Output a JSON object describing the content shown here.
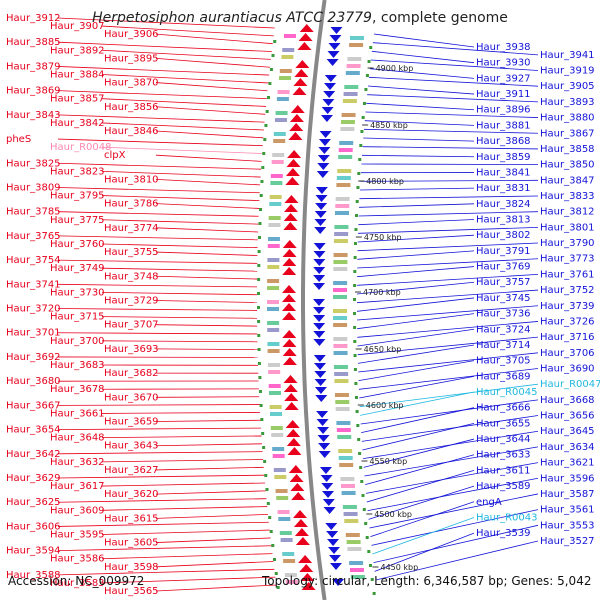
{
  "title": {
    "organism": "Herpetosiphon aurantiacus ATCC 23779",
    "suffix": ", complete genome"
  },
  "footer": {
    "accession_label": "Accession:",
    "accession_value": "NC_009972",
    "topology_label": "Topology:",
    "topology_value": "circular",
    "length_label": "Length:",
    "length_value": "6,346,587 bp",
    "genes_label": "Genes:",
    "genes_value": "5,042"
  },
  "colors": {
    "forward": "#e8001c",
    "reverse": "#1414d8",
    "rna": "#ff88b0",
    "rna_reverse": "#20b8e0",
    "backbone": "#888888",
    "tick": "#3a9a3a"
  },
  "scale_labels": [
    "4900 kbp",
    "4850 kbp",
    "4800 kbp",
    "4750 kbp",
    "4700 kbp",
    "4650 kbp",
    "4600 kbp",
    "4550 kbp",
    "4500 kbp",
    "4450 kbp"
  ],
  "left_labels": [
    {
      "text": "Haur_3912",
      "kind": "gene"
    },
    {
      "text": "Haur_3907",
      "kind": "gene"
    },
    {
      "text": "Haur_3906",
      "kind": "gene"
    },
    {
      "text": "Haur_3885",
      "kind": "gene"
    },
    {
      "text": "Haur_3892",
      "kind": "gene"
    },
    {
      "text": "Haur_3895",
      "kind": "gene"
    },
    {
      "text": "Haur_3879",
      "kind": "gene"
    },
    {
      "text": "Haur_3884",
      "kind": "gene"
    },
    {
      "text": "Haur_3870",
      "kind": "gene"
    },
    {
      "text": "Haur_3869",
      "kind": "gene"
    },
    {
      "text": "Haur_3857",
      "kind": "gene"
    },
    {
      "text": "Haur_3856",
      "kind": "gene"
    },
    {
      "text": "Haur_3843",
      "kind": "gene"
    },
    {
      "text": "Haur_3842",
      "kind": "gene"
    },
    {
      "text": "Haur_3846",
      "kind": "gene"
    },
    {
      "text": "pheS",
      "kind": "gene"
    },
    {
      "text": "Haur_R0048",
      "kind": "rna"
    },
    {
      "text": "clpX",
      "kind": "gene"
    },
    {
      "text": "Haur_3825",
      "kind": "gene"
    },
    {
      "text": "Haur_3823",
      "kind": "gene"
    },
    {
      "text": "Haur_3810",
      "kind": "gene"
    },
    {
      "text": "Haur_3809",
      "kind": "gene"
    },
    {
      "text": "Haur_3795",
      "kind": "gene"
    },
    {
      "text": "Haur_3786",
      "kind": "gene"
    },
    {
      "text": "Haur_3785",
      "kind": "gene"
    },
    {
      "text": "Haur_3775",
      "kind": "gene"
    },
    {
      "text": "Haur_3774",
      "kind": "gene"
    },
    {
      "text": "Haur_3765",
      "kind": "gene"
    },
    {
      "text": "Haur_3760",
      "kind": "gene"
    },
    {
      "text": "Haur_3755",
      "kind": "gene"
    },
    {
      "text": "Haur_3754",
      "kind": "gene"
    },
    {
      "text": "Haur_3749",
      "kind": "gene"
    },
    {
      "text": "Haur_3748",
      "kind": "gene"
    },
    {
      "text": "Haur_3741",
      "kind": "gene"
    },
    {
      "text": "Haur_3730",
      "kind": "gene"
    },
    {
      "text": "Haur_3729",
      "kind": "gene"
    },
    {
      "text": "Haur_3720",
      "kind": "gene"
    },
    {
      "text": "Haur_3715",
      "kind": "gene"
    },
    {
      "text": "Haur_3707",
      "kind": "gene"
    },
    {
      "text": "Haur_3701",
      "kind": "gene"
    },
    {
      "text": "Haur_3700",
      "kind": "gene"
    },
    {
      "text": "Haur_3693",
      "kind": "gene"
    },
    {
      "text": "Haur_3692",
      "kind": "gene"
    },
    {
      "text": "Haur_3683",
      "kind": "gene"
    },
    {
      "text": "Haur_3682",
      "kind": "gene"
    },
    {
      "text": "Haur_3680",
      "kind": "gene"
    },
    {
      "text": "Haur_3678",
      "kind": "gene"
    },
    {
      "text": "Haur_3670",
      "kind": "gene"
    },
    {
      "text": "Haur_3667",
      "kind": "gene"
    },
    {
      "text": "Haur_3661",
      "kind": "gene"
    },
    {
      "text": "Haur_3659",
      "kind": "gene"
    },
    {
      "text": "Haur_3654",
      "kind": "gene"
    },
    {
      "text": "Haur_3648",
      "kind": "gene"
    },
    {
      "text": "Haur_3643",
      "kind": "gene"
    },
    {
      "text": "Haur_3642",
      "kind": "gene"
    },
    {
      "text": "Haur_3632",
      "kind": "gene"
    },
    {
      "text": "Haur_3627",
      "kind": "gene"
    },
    {
      "text": "Haur_3629",
      "kind": "gene"
    },
    {
      "text": "Haur_3617",
      "kind": "gene"
    },
    {
      "text": "Haur_3620",
      "kind": "gene"
    },
    {
      "text": "Haur_3625",
      "kind": "gene"
    },
    {
      "text": "Haur_3609",
      "kind": "gene"
    },
    {
      "text": "Haur_3615",
      "kind": "gene"
    },
    {
      "text": "Haur_3606",
      "kind": "gene"
    },
    {
      "text": "Haur_3595",
      "kind": "gene"
    },
    {
      "text": "Haur_3605",
      "kind": "gene"
    },
    {
      "text": "Haur_3594",
      "kind": "gene"
    },
    {
      "text": "Haur_3586",
      "kind": "gene"
    },
    {
      "text": "Haur_3598",
      "kind": "gene"
    },
    {
      "text": "Haur_3588",
      "kind": "gene"
    },
    {
      "text": "Haur_3583",
      "kind": "gene"
    },
    {
      "text": "Haur_3565",
      "kind": "gene"
    }
  ],
  "right_labels": [
    {
      "text": "Haur_3938",
      "kind": "gene"
    },
    {
      "text": "Haur_3941",
      "kind": "gene"
    },
    {
      "text": "Haur_3930",
      "kind": "gene"
    },
    {
      "text": "Haur_3919",
      "kind": "gene"
    },
    {
      "text": "Haur_3927",
      "kind": "gene"
    },
    {
      "text": "Haur_3905",
      "kind": "gene"
    },
    {
      "text": "Haur_3911",
      "kind": "gene"
    },
    {
      "text": "Haur_3893",
      "kind": "gene"
    },
    {
      "text": "Haur_3896",
      "kind": "gene"
    },
    {
      "text": "Haur_3880",
      "kind": "gene"
    },
    {
      "text": "Haur_3881",
      "kind": "gene"
    },
    {
      "text": "Haur_3867",
      "kind": "gene"
    },
    {
      "text": "Haur_3868",
      "kind": "gene"
    },
    {
      "text": "Haur_3858",
      "kind": "gene"
    },
    {
      "text": "Haur_3859",
      "kind": "gene"
    },
    {
      "text": "Haur_3850",
      "kind": "gene"
    },
    {
      "text": "Haur_3841",
      "kind": "gene"
    },
    {
      "text": "Haur_3847",
      "kind": "gene"
    },
    {
      "text": "Haur_3831",
      "kind": "gene"
    },
    {
      "text": "Haur_3833",
      "kind": "gene"
    },
    {
      "text": "Haur_3824",
      "kind": "gene"
    },
    {
      "text": "Haur_3812",
      "kind": "gene"
    },
    {
      "text": "Haur_3813",
      "kind": "gene"
    },
    {
      "text": "Haur_3801",
      "kind": "gene"
    },
    {
      "text": "Haur_3802",
      "kind": "gene"
    },
    {
      "text": "Haur_3790",
      "kind": "gene"
    },
    {
      "text": "Haur_3791",
      "kind": "gene"
    },
    {
      "text": "Haur_3773",
      "kind": "gene"
    },
    {
      "text": "Haur_3769",
      "kind": "gene"
    },
    {
      "text": "Haur_3761",
      "kind": "gene"
    },
    {
      "text": "Haur_3757",
      "kind": "gene"
    },
    {
      "text": "Haur_3752",
      "kind": "gene"
    },
    {
      "text": "Haur_3745",
      "kind": "gene"
    },
    {
      "text": "Haur_3739",
      "kind": "gene"
    },
    {
      "text": "Haur_3736",
      "kind": "gene"
    },
    {
      "text": "Haur_3726",
      "kind": "gene"
    },
    {
      "text": "Haur_3724",
      "kind": "gene"
    },
    {
      "text": "Haur_3716",
      "kind": "gene"
    },
    {
      "text": "Haur_3714",
      "kind": "gene"
    },
    {
      "text": "Haur_3706",
      "kind": "gene"
    },
    {
      "text": "Haur_3705",
      "kind": "gene"
    },
    {
      "text": "Haur_3690",
      "kind": "gene"
    },
    {
      "text": "Haur_3689",
      "kind": "gene"
    },
    {
      "text": "Haur_R0047",
      "kind": "rna"
    },
    {
      "text": "Haur_R0045",
      "kind": "rna"
    },
    {
      "text": "Haur_3668",
      "kind": "gene"
    },
    {
      "text": "Haur_3666",
      "kind": "gene"
    },
    {
      "text": "Haur_3656",
      "kind": "gene"
    },
    {
      "text": "Haur_3655",
      "kind": "gene"
    },
    {
      "text": "Haur_3645",
      "kind": "gene"
    },
    {
      "text": "Haur_3644",
      "kind": "gene"
    },
    {
      "text": "Haur_3634",
      "kind": "gene"
    },
    {
      "text": "Haur_3633",
      "kind": "gene"
    },
    {
      "text": "Haur_3621",
      "kind": "gene"
    },
    {
      "text": "Haur_3611",
      "kind": "gene"
    },
    {
      "text": "Haur_3596",
      "kind": "gene"
    },
    {
      "text": "Haur_3589",
      "kind": "gene"
    },
    {
      "text": "Haur_3587",
      "kind": "gene"
    },
    {
      "text": "engA",
      "kind": "gene"
    },
    {
      "text": "Haur_3561",
      "kind": "gene"
    },
    {
      "text": "Haur_R0043",
      "kind": "rna"
    },
    {
      "text": "Haur_3553",
      "kind": "gene"
    },
    {
      "text": "Haur_3539",
      "kind": "gene"
    },
    {
      "text": "Haur_3527",
      "kind": "gene"
    }
  ]
}
